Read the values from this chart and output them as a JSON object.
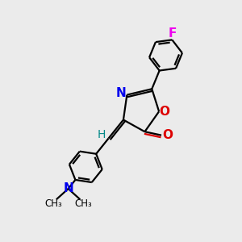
{
  "background_color": "#ebebeb",
  "bond_color": "#000000",
  "N_color": "#0000ee",
  "O_color": "#dd0000",
  "F_color": "#ee00ee",
  "H_color": "#008888",
  "line_width": 1.6,
  "font_size": 10,
  "fig_width": 3.0,
  "fig_height": 3.0,
  "xlim": [
    0,
    10
  ],
  "ylim": [
    0,
    10
  ]
}
